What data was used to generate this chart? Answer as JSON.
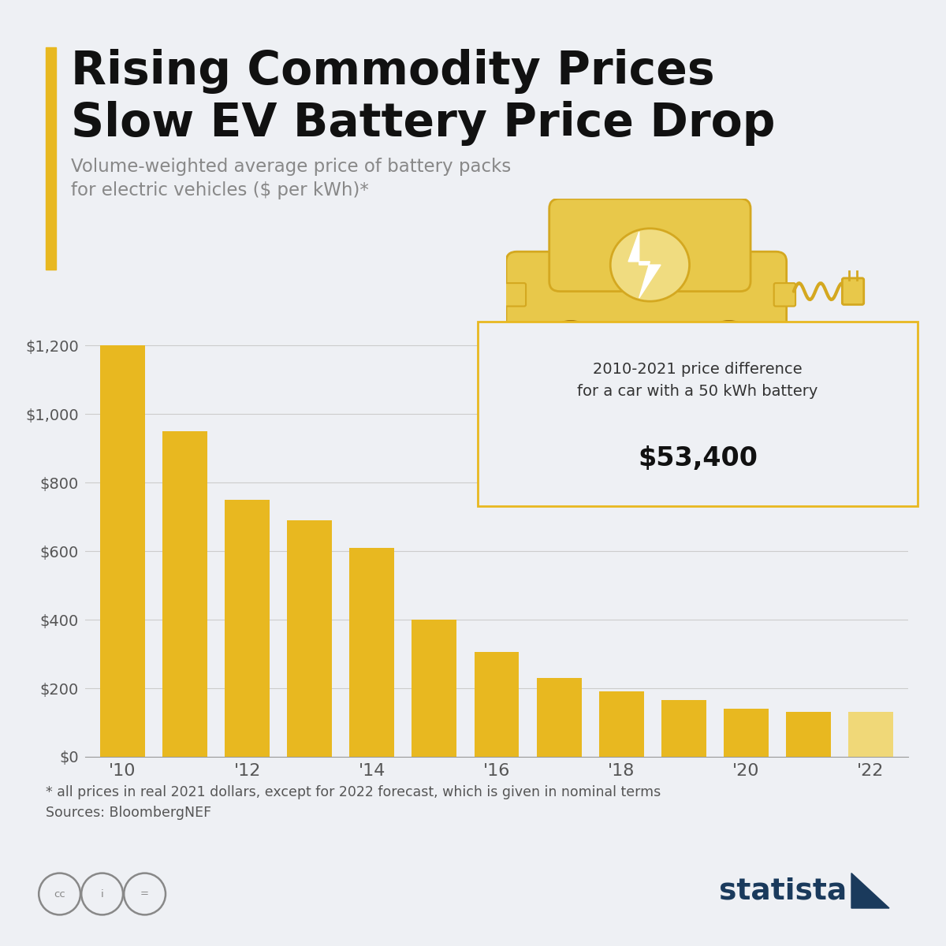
{
  "title_line1": "Rising Commodity Prices",
  "title_line2": "Slow EV Battery Price Drop",
  "subtitle_line1": "Volume-weighted average price of battery packs",
  "subtitle_line2": "for electric vehicles ($ per kWh)*",
  "years": [
    2010,
    2011,
    2012,
    2013,
    2014,
    2015,
    2016,
    2017,
    2018,
    2019,
    2020,
    2021,
    2022
  ],
  "values": [
    1200,
    950,
    750,
    690,
    610,
    400,
    305,
    230,
    190,
    165,
    140,
    130,
    132
  ],
  "bar_colors": [
    "#E8B820",
    "#E8B820",
    "#E8B820",
    "#E8B820",
    "#E8B820",
    "#E8B820",
    "#E8B820",
    "#E8B820",
    "#E8B820",
    "#E8B820",
    "#E8B820",
    "#E8B820",
    "#F0D878"
  ],
  "xtick_labels": [
    "'10",
    "",
    "'12",
    "",
    "'14",
    "",
    "'16",
    "",
    "'18",
    "",
    "'20",
    "",
    "'22"
  ],
  "ytick_values": [
    0,
    200,
    400,
    600,
    800,
    1000,
    1200
  ],
  "ytick_labels": [
    "$0",
    "$200",
    "$400",
    "$600",
    "$800",
    "$1,000",
    "$1,200"
  ],
  "ylim": [
    0,
    1380
  ],
  "annotation_text": "2010-2021 price difference\nfor a car with a 50 kWh battery",
  "annotation_value": "$53,400",
  "footnote_line1": "* all prices in real 2021 dollars, except for 2022 forecast, which is given in nominal terms",
  "footnote_line2": "Sources: BloombergNEF",
  "background_color": "#eef0f4",
  "accent_color": "#E8B820",
  "title_color": "#111111",
  "subtitle_color": "#888888",
  "axis_color": "#555555",
  "grid_color": "#cccccc",
  "annotation_box_border": "#E8B820",
  "statista_color": "#1a3a5c",
  "car_color": "#E8C84A",
  "car_dark": "#D4A820",
  "car_light": "#F0DC80"
}
